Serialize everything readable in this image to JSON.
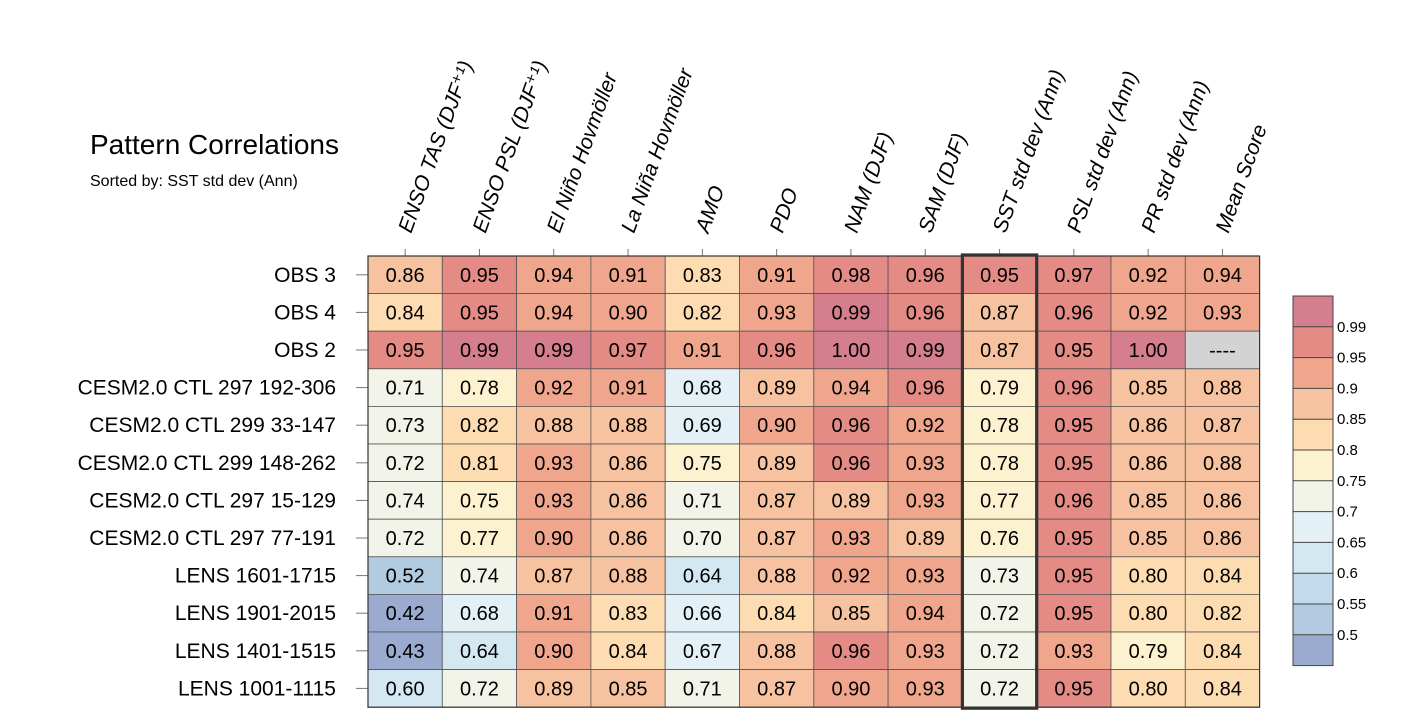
{
  "chart_data": {
    "type": "heatmap",
    "title": "Pattern Correlations",
    "subtitle": "Sorted by: SST std dev (Ann)",
    "columns": [
      "ENSO TAS (DJF⁺¹)",
      "ENSO PSL (DJF⁺¹)",
      "El Niño Hovmöller",
      "La Niña Hovmöller",
      "AMO",
      "PDO",
      "NAM (DJF)",
      "SAM (DJF)",
      "SST std dev (Ann)",
      "PSL std dev (Ann)",
      "PR std dev (Ann)",
      "Mean Score"
    ],
    "highlight_column": "SST std dev (Ann)",
    "missing_label": "----",
    "rows": [
      {
        "label": "OBS 3",
        "values": [
          0.86,
          0.95,
          0.94,
          0.91,
          0.83,
          0.91,
          0.98,
          0.96,
          0.95,
          0.97,
          0.92,
          0.94
        ]
      },
      {
        "label": "OBS 4",
        "values": [
          0.84,
          0.95,
          0.94,
          0.9,
          0.82,
          0.93,
          0.99,
          0.96,
          0.87,
          0.96,
          0.92,
          0.93
        ]
      },
      {
        "label": "OBS 2",
        "values": [
          0.95,
          0.99,
          0.99,
          0.97,
          0.91,
          0.96,
          1.0,
          0.99,
          0.87,
          0.95,
          1.0,
          null
        ]
      },
      {
        "label": "CESM2.0 CTL 297 192-306",
        "values": [
          0.71,
          0.78,
          0.92,
          0.91,
          0.68,
          0.89,
          0.94,
          0.96,
          0.79,
          0.96,
          0.85,
          0.88
        ]
      },
      {
        "label": "CESM2.0 CTL 299 33-147",
        "values": [
          0.73,
          0.82,
          0.88,
          0.88,
          0.69,
          0.9,
          0.96,
          0.92,
          0.78,
          0.95,
          0.86,
          0.87
        ]
      },
      {
        "label": "CESM2.0 CTL 299 148-262",
        "values": [
          0.72,
          0.81,
          0.93,
          0.86,
          0.75,
          0.89,
          0.96,
          0.93,
          0.78,
          0.95,
          0.86,
          0.88
        ]
      },
      {
        "label": "CESM2.0 CTL 297 15-129",
        "values": [
          0.74,
          0.75,
          0.93,
          0.86,
          0.71,
          0.87,
          0.89,
          0.93,
          0.77,
          0.96,
          0.85,
          0.86
        ]
      },
      {
        "label": "CESM2.0 CTL 297 77-191",
        "values": [
          0.72,
          0.77,
          0.9,
          0.86,
          0.7,
          0.87,
          0.93,
          0.89,
          0.76,
          0.95,
          0.85,
          0.86
        ]
      },
      {
        "label": "LENS 1601-1715",
        "values": [
          0.52,
          0.74,
          0.87,
          0.88,
          0.64,
          0.88,
          0.92,
          0.93,
          0.73,
          0.95,
          0.8,
          0.84
        ]
      },
      {
        "label": "LENS 1901-2015",
        "values": [
          0.42,
          0.68,
          0.91,
          0.83,
          0.66,
          0.84,
          0.85,
          0.94,
          0.72,
          0.95,
          0.8,
          0.82
        ]
      },
      {
        "label": "LENS 1401-1515",
        "values": [
          0.43,
          0.64,
          0.9,
          0.84,
          0.67,
          0.88,
          0.96,
          0.93,
          0.72,
          0.93,
          0.79,
          0.84
        ]
      },
      {
        "label": "LENS 1001-1115",
        "values": [
          0.6,
          0.72,
          0.89,
          0.85,
          0.71,
          0.87,
          0.9,
          0.93,
          0.72,
          0.95,
          0.8,
          0.84
        ]
      }
    ],
    "colorbar": {
      "levels": [
        0.5,
        0.55,
        0.6,
        0.65,
        0.7,
        0.75,
        0.8,
        0.85,
        0.9,
        0.95,
        0.99
      ],
      "tick_labels": [
        "0.5",
        "0.55",
        "0.6",
        "0.65",
        "0.7",
        "0.75",
        "0.8",
        "0.85",
        "0.9",
        "0.95",
        "0.99"
      ],
      "colors": [
        "#9aabcf",
        "#b2cbe1",
        "#c2daeb",
        "#d4e8f2",
        "#e3f1f6",
        "#f2f3e9",
        "#fdf2cf",
        "#fcdcb0",
        "#f6c29f",
        "#efa68c",
        "#e38b84",
        "#d57e8e"
      ],
      "missing_color": "#d3d3d3",
      "orientation": "vertical",
      "placement": "right"
    }
  }
}
